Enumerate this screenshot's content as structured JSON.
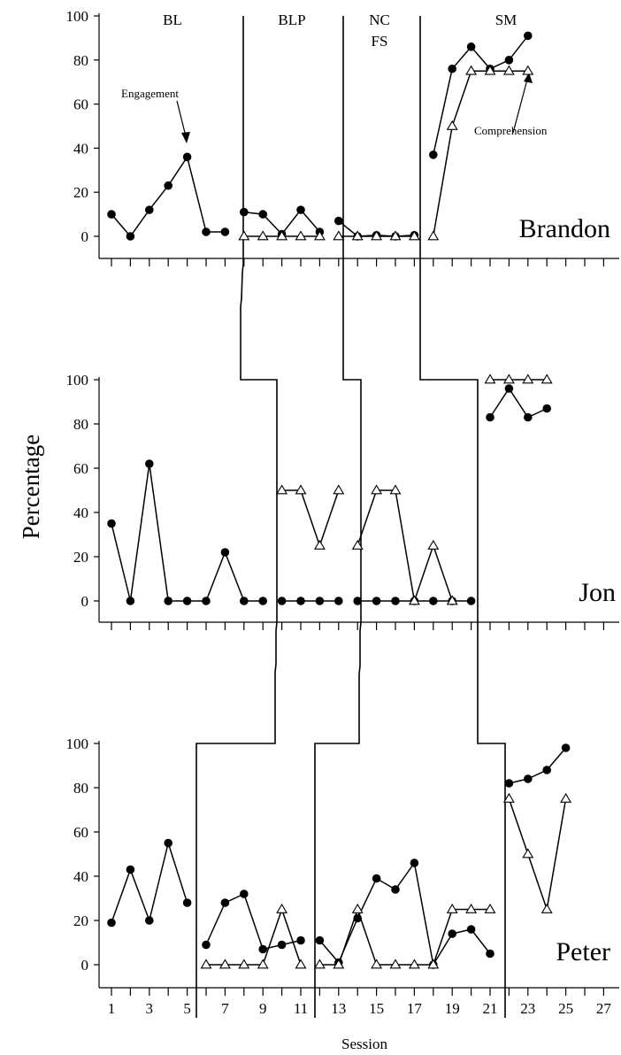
{
  "chart_data": {
    "type": "line",
    "ylabel": "Percentage",
    "xlabel": "Session",
    "x_ticks": [
      "1",
      "3",
      "5",
      "7",
      "9",
      "11",
      "13",
      "15",
      "17",
      "19",
      "21",
      "23",
      "25",
      "27"
    ],
    "y_ticks": [
      "0",
      "20",
      "40",
      "60",
      "80",
      "100"
    ],
    "ylim": [
      0,
      100
    ],
    "xlim": [
      1,
      27
    ],
    "panels": [
      {
        "name": "Brandon",
        "phase_labels": [
          "BL",
          "BLP",
          "NC",
          "FS",
          "SM"
        ],
        "annotations": [
          "Engagement",
          "Comprehension"
        ],
        "series": [
          {
            "name": "Engagement",
            "marker": "circle",
            "segments": [
              [
                [
                  1,
                  10
                ],
                [
                  2,
                  0
                ],
                [
                  3,
                  12
                ],
                [
                  4,
                  23
                ],
                [
                  5,
                  36
                ],
                [
                  6,
                  2
                ],
                [
                  7,
                  2
                ]
              ],
              [
                [
                  8,
                  11
                ],
                [
                  9,
                  10
                ],
                [
                  10,
                  1
                ],
                [
                  11,
                  12
                ],
                [
                  12,
                  2
                ]
              ],
              [
                [
                  13,
                  7
                ],
                [
                  14,
                  0
                ],
                [
                  15,
                  0.5
                ],
                [
                  16,
                  0
                ],
                [
                  17,
                  0.5
                ]
              ],
              [
                [
                  18,
                  37
                ],
                [
                  19,
                  76
                ],
                [
                  20,
                  86
                ],
                [
                  21,
                  76
                ],
                [
                  22,
                  80
                ],
                [
                  23,
                  91
                ]
              ]
            ]
          },
          {
            "name": "Comprehension",
            "marker": "triangle",
            "segments": [
              [
                [
                  8,
                  0
                ],
                [
                  9,
                  0
                ],
                [
                  10,
                  0
                ],
                [
                  11,
                  0
                ],
                [
                  12,
                  0
                ]
              ],
              [
                [
                  13,
                  0
                ],
                [
                  14,
                  0
                ],
                [
                  15,
                  0
                ],
                [
                  16,
                  0
                ],
                [
                  17,
                  0
                ]
              ],
              [
                [
                  18,
                  0
                ],
                [
                  19,
                  50
                ],
                [
                  20,
                  75
                ],
                [
                  21,
                  75
                ],
                [
                  22,
                  75
                ],
                [
                  23,
                  75
                ]
              ]
            ]
          }
        ]
      },
      {
        "name": "Jon",
        "series": [
          {
            "name": "Engagement",
            "marker": "circle",
            "segments": [
              [
                [
                  1,
                  35
                ],
                [
                  2,
                  0
                ],
                [
                  3,
                  62
                ],
                [
                  4,
                  0
                ],
                [
                  5,
                  0
                ],
                [
                  6,
                  0
                ],
                [
                  7,
                  22
                ],
                [
                  8,
                  0
                ],
                [
                  9,
                  0
                ]
              ],
              [
                [
                  10,
                  0
                ],
                [
                  11,
                  0
                ],
                [
                  12,
                  0
                ],
                [
                  13,
                  0
                ]
              ],
              [
                [
                  14,
                  0
                ],
                [
                  15,
                  0
                ],
                [
                  16,
                  0
                ],
                [
                  17,
                  0
                ],
                [
                  18,
                  0
                ],
                [
                  19,
                  0
                ],
                [
                  20,
                  0
                ]
              ],
              [
                [
                  21,
                  83
                ],
                [
                  22,
                  96
                ],
                [
                  23,
                  83
                ],
                [
                  24,
                  87
                ]
              ]
            ]
          },
          {
            "name": "Comprehension",
            "marker": "triangle",
            "segments": [
              [
                [
                  10,
                  50
                ],
                [
                  11,
                  50
                ],
                [
                  12,
                  25
                ],
                [
                  13,
                  50
                ]
              ],
              [
                [
                  14,
                  25
                ],
                [
                  15,
                  50
                ],
                [
                  16,
                  50
                ],
                [
                  17,
                  0
                ],
                [
                  18,
                  25
                ],
                [
                  19,
                  0
                ]
              ],
              [
                [
                  21,
                  100
                ],
                [
                  22,
                  100
                ],
                [
                  23,
                  100
                ],
                [
                  24,
                  100
                ]
              ]
            ]
          }
        ]
      },
      {
        "name": "Peter",
        "series": [
          {
            "name": "Engagement",
            "marker": "circle",
            "segments": [
              [
                [
                  1,
                  19
                ],
                [
                  2,
                  43
                ],
                [
                  3,
                  20
                ],
                [
                  4,
                  55
                ],
                [
                  5,
                  28
                ]
              ],
              [
                [
                  6,
                  9
                ],
                [
                  7,
                  28
                ],
                [
                  8,
                  32
                ],
                [
                  9,
                  7
                ],
                [
                  10,
                  9
                ],
                [
                  11,
                  11
                ]
              ],
              [
                [
                  12,
                  11
                ],
                [
                  13,
                  1
                ],
                [
                  14,
                  21
                ],
                [
                  15,
                  39
                ],
                [
                  16,
                  34
                ],
                [
                  17,
                  46
                ],
                [
                  18,
                  0
                ],
                [
                  19,
                  14
                ],
                [
                  20,
                  16
                ],
                [
                  21,
                  5
                ]
              ],
              [
                [
                  22,
                  82
                ],
                [
                  23,
                  84
                ],
                [
                  24,
                  88
                ],
                [
                  25,
                  98
                ]
              ]
            ]
          },
          {
            "name": "Comprehension",
            "marker": "triangle",
            "segments": [
              [
                [
                  6,
                  0
                ],
                [
                  7,
                  0
                ],
                [
                  8,
                  0
                ],
                [
                  9,
                  0
                ],
                [
                  10,
                  25
                ],
                [
                  11,
                  0
                ]
              ],
              [
                [
                  12,
                  0
                ],
                [
                  13,
                  0
                ],
                [
                  14,
                  25
                ],
                [
                  15,
                  0
                ],
                [
                  16,
                  0
                ],
                [
                  17,
                  0
                ],
                [
                  18,
                  0
                ],
                [
                  19,
                  25
                ],
                [
                  20,
                  25
                ],
                [
                  21,
                  25
                ]
              ],
              [
                [
                  22,
                  75
                ],
                [
                  23,
                  50
                ],
                [
                  24,
                  25
                ],
                [
                  25,
                  75
                ]
              ]
            ]
          }
        ]
      }
    ]
  }
}
